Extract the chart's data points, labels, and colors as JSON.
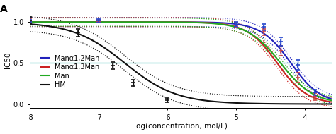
{
  "title": "A",
  "xlabel": "log(concentration, mol/L)",
  "ylabel": "IC50",
  "xlim": [
    -8,
    -3.6
  ],
  "ylim": [
    -0.05,
    1.12
  ],
  "hline_y": 0.5,
  "hline_color": "#6ecdc8",
  "xticks": [
    -8,
    -7,
    -6,
    -5,
    -4
  ],
  "xtick_labels": [
    "-8",
    "-7",
    "-6",
    "-5",
    "-4"
  ],
  "yticks": [
    0.0,
    0.5,
    1.0
  ],
  "curves": [
    {
      "label": "Manα1,2Man",
      "color": "#2222bb",
      "ic50_log": -4.2,
      "hill": 2.0,
      "conf_band": 0.055
    },
    {
      "label": "Manα1,3Man",
      "color": "#cc2222",
      "ic50_log": -4.4,
      "hill": 2.0,
      "conf_band": 0.055
    },
    {
      "label": "Man",
      "color": "#22aa22",
      "ic50_log": -4.35,
      "hill": 1.8,
      "conf_band": 0.05
    },
    {
      "label": "HM",
      "color": "#111111",
      "ic50_log": -6.62,
      "hill": 1.15,
      "conf_band": 0.09
    }
  ],
  "data_points": [
    {
      "color": "#cc4444",
      "x": [
        -8.0,
        -7.0,
        -5.0,
        -4.6,
        -4.35,
        -4.1,
        -3.85
      ],
      "y": [
        1.02,
        1.01,
        0.96,
        0.88,
        0.65,
        0.32,
        0.09
      ],
      "yerr": [
        0.025,
        0.02,
        0.03,
        0.04,
        0.06,
        0.06,
        0.04
      ]
    },
    {
      "color": "#2244cc",
      "x": [
        -8.0,
        -7.0,
        -5.0,
        -4.6,
        -4.35,
        -4.1,
        -3.85
      ],
      "y": [
        1.03,
        1.02,
        0.97,
        0.94,
        0.76,
        0.48,
        0.14
      ],
      "yerr": [
        0.025,
        0.02,
        0.03,
        0.04,
        0.05,
        0.06,
        0.04
      ]
    },
    {
      "color": "#111111",
      "x": [
        -8.0,
        -7.3,
        -6.8,
        -6.5,
        -6.0
      ],
      "y": [
        1.02,
        0.87,
        0.47,
        0.26,
        0.05
      ],
      "yerr": [
        0.04,
        0.05,
        0.04,
        0.04,
        0.025
      ]
    }
  ],
  "background_color": "#ffffff",
  "figsize": [
    4.74,
    1.9
  ],
  "dpi": 100
}
